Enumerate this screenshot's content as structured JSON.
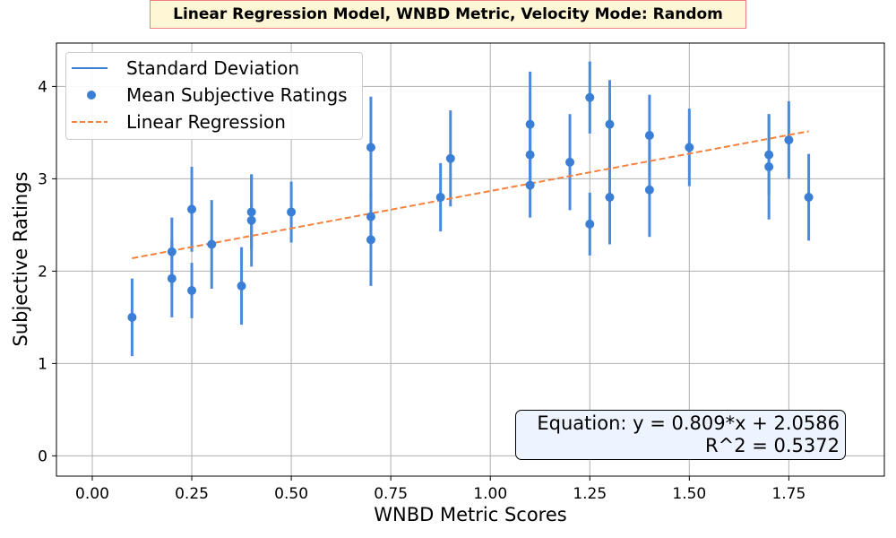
{
  "chart_data": {
    "type": "scatter",
    "title": "Linear Regression Model, WNBD Metric, Velocity Mode: Random",
    "xlabel": "WNBD Metric Scores",
    "ylabel": "Subjective Ratings",
    "xlim": [
      -0.09,
      1.99
    ],
    "ylim": [
      -0.22,
      4.47
    ],
    "xticks": [
      0.0,
      0.25,
      0.5,
      0.75,
      1.0,
      1.25,
      1.5,
      1.75
    ],
    "xtick_labels": [
      "0.00",
      "0.25",
      "0.50",
      "0.75",
      "1.00",
      "1.25",
      "1.50",
      "1.75"
    ],
    "yticks": [
      0,
      1,
      2,
      3,
      4
    ],
    "ytick_labels": [
      "0",
      "1",
      "2",
      "3",
      "4"
    ],
    "grid": true,
    "legend_position": "top-left",
    "legend": [
      {
        "label": "Standard Deviation",
        "kind": "line",
        "color": "#3a7fd5"
      },
      {
        "label": "Mean Subjective Ratings",
        "kind": "marker",
        "color": "#3a7fd5"
      },
      {
        "label": "Linear Regression",
        "kind": "dashed",
        "color": "#f5813f"
      }
    ],
    "points": [
      {
        "x": 0.1,
        "y": 1.5,
        "sd": 0.42
      },
      {
        "x": 0.2,
        "y": 1.92,
        "sd": 0.42
      },
      {
        "x": 0.2,
        "y": 2.21,
        "sd": 0.37
      },
      {
        "x": 0.25,
        "y": 1.79,
        "sd": 0.3
      },
      {
        "x": 0.25,
        "y": 2.67,
        "sd": 0.46
      },
      {
        "x": 0.3,
        "y": 2.29,
        "sd": 0.48
      },
      {
        "x": 0.375,
        "y": 1.84,
        "sd": 0.42
      },
      {
        "x": 0.4,
        "y": 2.55,
        "sd": 0.5
      },
      {
        "x": 0.4,
        "y": 2.64,
        "sd": 0.4
      },
      {
        "x": 0.5,
        "y": 2.64,
        "sd": 0.33
      },
      {
        "x": 0.7,
        "y": 2.34,
        "sd": 0.5
      },
      {
        "x": 0.7,
        "y": 2.59,
        "sd": 0.3
      },
      {
        "x": 0.7,
        "y": 3.34,
        "sd": 0.55
      },
      {
        "x": 0.875,
        "y": 2.8,
        "sd": 0.37
      },
      {
        "x": 0.9,
        "y": 3.22,
        "sd": 0.52
      },
      {
        "x": 1.1,
        "y": 2.93,
        "sd": 0.35
      },
      {
        "x": 1.1,
        "y": 3.26,
        "sd": 0.3
      },
      {
        "x": 1.1,
        "y": 3.59,
        "sd": 0.57
      },
      {
        "x": 1.2,
        "y": 3.18,
        "sd": 0.52
      },
      {
        "x": 1.25,
        "y": 2.51,
        "sd": 0.34
      },
      {
        "x": 1.25,
        "y": 3.88,
        "sd": 0.39
      },
      {
        "x": 1.3,
        "y": 2.8,
        "sd": 0.51
      },
      {
        "x": 1.3,
        "y": 3.59,
        "sd": 0.48
      },
      {
        "x": 1.4,
        "y": 2.88,
        "sd": 0.51
      },
      {
        "x": 1.4,
        "y": 3.47,
        "sd": 0.44
      },
      {
        "x": 1.5,
        "y": 3.34,
        "sd": 0.42
      },
      {
        "x": 1.7,
        "y": 3.13,
        "sd": 0.57
      },
      {
        "x": 1.7,
        "y": 3.26,
        "sd": 0.44
      },
      {
        "x": 1.75,
        "y": 3.42,
        "sd": 0.42
      },
      {
        "x": 1.8,
        "y": 2.8,
        "sd": 0.47
      }
    ],
    "regression": {
      "slope": 0.809,
      "intercept": 2.0586,
      "x_range": [
        0.1,
        1.8
      ],
      "color": "#f5813f"
    },
    "annotation": {
      "equation": "Equation: y = 0.809*x + 2.0586",
      "r_squared": "R^2 = 0.5372"
    },
    "colors": {
      "marker": "#3a7fd5",
      "errorbar": "#4a8ade",
      "grid": "#b0b0b0"
    }
  }
}
